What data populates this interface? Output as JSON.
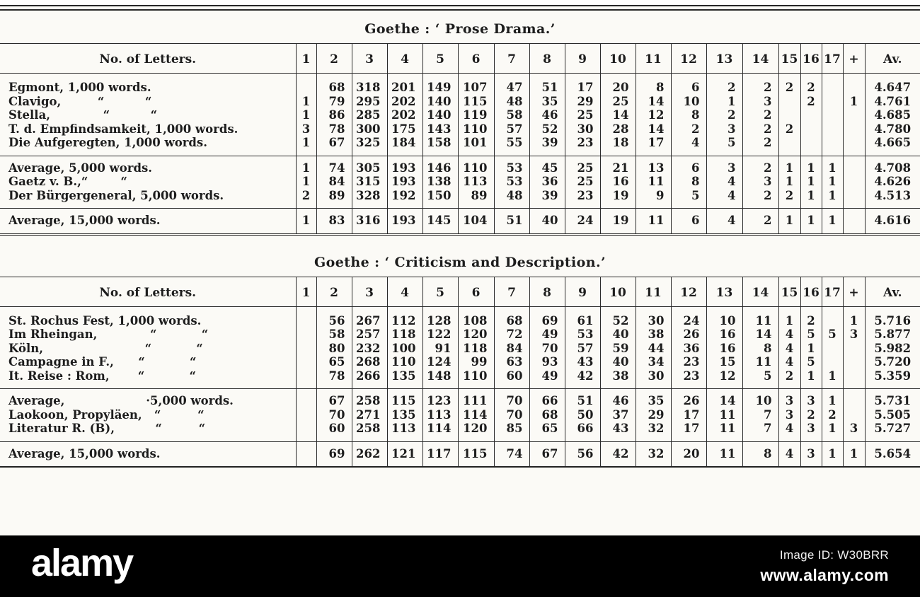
{
  "page": {
    "paper_color": "#fbfaf6",
    "ink_color": "#1d1d1d",
    "bar_color": "#000000"
  },
  "watermark": {
    "logo_text": "alamy",
    "image_id": "Image ID: W30BRR",
    "site": "www.alamy.com"
  },
  "header_columns": [
    "No. of Letters.",
    "1",
    "2",
    "3",
    "4",
    "5",
    "6",
    "7",
    "8",
    "9",
    "10",
    "11",
    "12",
    "13",
    "14",
    "15",
    "16",
    "17",
    "+",
    "Av."
  ],
  "tables": [
    {
      "title": "Goethe : ‘ Prose Drama.’",
      "groups": [
        {
          "rows": [
            {
              "label": "Egmont, 1,000 words.",
              "cells": [
                "",
                "68",
                "318",
                "201",
                "149",
                "107",
                "47",
                "51",
                "17",
                "20",
                "8",
                "6",
                "2",
                "2",
                "2",
                "2",
                "",
                "",
                "4.647"
              ]
            },
            {
              "label": "Clavigo,         “          “",
              "cells": [
                "1",
                "79",
                "295",
                "202",
                "140",
                "115",
                "48",
                "35",
                "29",
                "25",
                "14",
                "10",
                "1",
                "3",
                "",
                "2",
                "",
                "1",
                "4.761"
              ]
            },
            {
              "label": "Stella,             “          “",
              "cells": [
                "1",
                "86",
                "285",
                "202",
                "140",
                "119",
                "58",
                "46",
                "25",
                "14",
                "12",
                "8",
                "2",
                "2",
                "",
                "",
                "",
                "",
                "4.685"
              ]
            },
            {
              "label": "T. d. Empfindsamkeit, 1,000 words.",
              "cells": [
                "3",
                "78",
                "300",
                "175",
                "143",
                "110",
                "57",
                "52",
                "30",
                "28",
                "14",
                "2",
                "3",
                "2",
                "2",
                "",
                "",
                "",
                "4.780"
              ]
            },
            {
              "label": "Die Aufgeregten, 1,000 words.",
              "cells": [
                "1",
                "67",
                "325",
                "184",
                "158",
                "101",
                "55",
                "39",
                "23",
                "18",
                "17",
                "4",
                "5",
                "2",
                "",
                "",
                "",
                "",
                "4.665"
              ]
            }
          ]
        },
        {
          "rows": [
            {
              "label": "Average, 5,000 words.",
              "cells": [
                "1",
                "74",
                "305",
                "193",
                "146",
                "110",
                "53",
                "45",
                "25",
                "21",
                "13",
                "6",
                "3",
                "2",
                "1",
                "1",
                "1",
                "",
                "4.708"
              ]
            },
            {
              "label": "Gaetz v. B.,“        “",
              "cells": [
                "1",
                "84",
                "315",
                "193",
                "138",
                "113",
                "53",
                "36",
                "25",
                "16",
                "11",
                "8",
                "4",
                "3",
                "1",
                "1",
                "1",
                "",
                "4.626"
              ]
            },
            {
              "label": "Der Bürgergeneral, 5,000 words.",
              "cells": [
                "2",
                "89",
                "328",
                "192",
                "150",
                "89",
                "48",
                "39",
                "23",
                "19",
                "9",
                "5",
                "4",
                "2",
                "2",
                "1",
                "1",
                "",
                "4.513"
              ]
            }
          ]
        },
        {
          "rows": [
            {
              "label": "Average, 15,000 words.",
              "cells": [
                "1",
                "83",
                "316",
                "193",
                "145",
                "104",
                "51",
                "40",
                "24",
                "19",
                "11",
                "6",
                "4",
                "2",
                "1",
                "1",
                "1",
                "",
                "4.616"
              ]
            }
          ]
        }
      ]
    },
    {
      "title": "Goethe : ‘ Criticism and Description.’",
      "groups": [
        {
          "rows": [
            {
              "label": "St. Rochus Fest, 1,000 words.",
              "cells": [
                "",
                "56",
                "267",
                "112",
                "128",
                "108",
                "68",
                "69",
                "61",
                "52",
                "30",
                "24",
                "10",
                "11",
                "1",
                "2",
                "",
                "1",
                "5.716"
              ]
            },
            {
              "label": "Im Rheingan,             “           “",
              "cells": [
                "",
                "58",
                "257",
                "118",
                "122",
                "120",
                "72",
                "49",
                "53",
                "40",
                "38",
                "26",
                "16",
                "14",
                "4",
                "5",
                "5",
                "3",
                "5.877"
              ]
            },
            {
              "label": "Köln,                         “           “",
              "cells": [
                "",
                "80",
                "232",
                "100",
                "91",
                "118",
                "84",
                "70",
                "57",
                "59",
                "44",
                "36",
                "16",
                "8",
                "4",
                "1",
                "",
                "",
                "5.982"
              ]
            },
            {
              "label": "Campagne in F.,      “           “",
              "cells": [
                "",
                "65",
                "268",
                "110",
                "124",
                "99",
                "63",
                "93",
                "43",
                "40",
                "34",
                "23",
                "15",
                "11",
                "4",
                "5",
                "",
                "",
                "5.720"
              ]
            },
            {
              "label": "It. Reise : Rom,       “           “",
              "cells": [
                "",
                "78",
                "266",
                "135",
                "148",
                "110",
                "60",
                "49",
                "42",
                "38",
                "30",
                "23",
                "12",
                "5",
                "2",
                "1",
                "1",
                "",
                "5.359"
              ]
            }
          ]
        },
        {
          "rows": [
            {
              "label": "Average,                    ·5,000 words.",
              "cells": [
                "",
                "67",
                "258",
                "115",
                "123",
                "111",
                "70",
                "66",
                "51",
                "46",
                "35",
                "26",
                "14",
                "10",
                "3",
                "3",
                "1",
                "",
                "5.731"
              ]
            },
            {
              "label": "Laokoon, Propyläen,   “         “",
              "cells": [
                "",
                "70",
                "271",
                "135",
                "113",
                "114",
                "70",
                "68",
                "50",
                "37",
                "29",
                "17",
                "11",
                "7",
                "3",
                "2",
                "2",
                "",
                "5.505"
              ]
            },
            {
              "label": "Literatur R. (B),          “         “",
              "cells": [
                "",
                "60",
                "258",
                "113",
                "114",
                "120",
                "85",
                "65",
                "66",
                "43",
                "32",
                "17",
                "11",
                "7",
                "4",
                "3",
                "1",
                "3",
                "5.727"
              ]
            }
          ]
        },
        {
          "rows": [
            {
              "label": "Average, 15,000 words.",
              "cells": [
                "",
                "69",
                "262",
                "121",
                "117",
                "115",
                "74",
                "67",
                "56",
                "42",
                "32",
                "20",
                "11",
                "8",
                "4",
                "3",
                "1",
                "1",
                "5.654"
              ]
            }
          ]
        }
      ]
    }
  ]
}
